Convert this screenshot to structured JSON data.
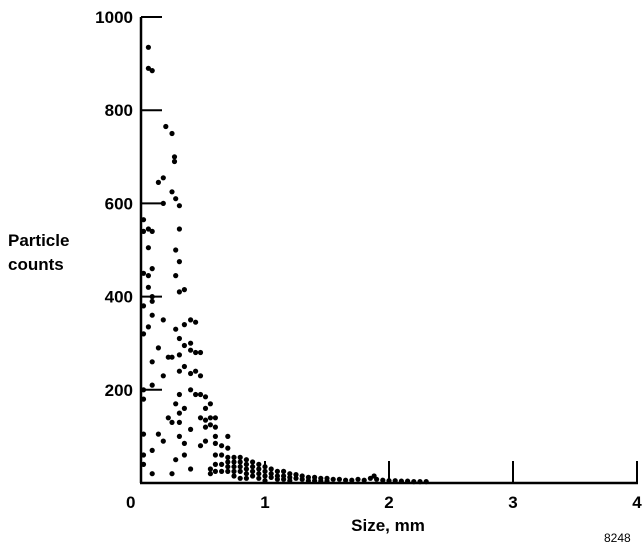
{
  "chart_data": {
    "type": "scatter",
    "title": "",
    "xlabel": "Size, mm",
    "ylabel_lines": [
      "Particle",
      "counts"
    ],
    "xlim": [
      0,
      4
    ],
    "ylim": [
      0,
      1000
    ],
    "x_ticks": [
      0,
      1,
      2,
      3,
      4
    ],
    "x_tick_labels": [
      "0",
      "1",
      "2",
      "3",
      "4"
    ],
    "y_ticks": [
      200,
      400,
      600,
      800,
      1000
    ],
    "y_tick_labels": [
      "200",
      "400",
      "600",
      "800",
      "1000"
    ],
    "grid": false,
    "legend": "none",
    "figure_id": "8248",
    "marker_color": "#000000",
    "points": [
      [
        0.02,
        565
      ],
      [
        0.02,
        540
      ],
      [
        0.02,
        450
      ],
      [
        0.02,
        380
      ],
      [
        0.02,
        320
      ],
      [
        0.02,
        200
      ],
      [
        0.02,
        180
      ],
      [
        0.02,
        105
      ],
      [
        0.02,
        60
      ],
      [
        0.02,
        40
      ],
      [
        0.06,
        935
      ],
      [
        0.06,
        890
      ],
      [
        0.06,
        545
      ],
      [
        0.06,
        505
      ],
      [
        0.06,
        445
      ],
      [
        0.06,
        420
      ],
      [
        0.06,
        335
      ],
      [
        0.09,
        885
      ],
      [
        0.09,
        540
      ],
      [
        0.09,
        460
      ],
      [
        0.09,
        400
      ],
      [
        0.09,
        390
      ],
      [
        0.09,
        360
      ],
      [
        0.09,
        260
      ],
      [
        0.09,
        210
      ],
      [
        0.09,
        70
      ],
      [
        0.09,
        20
      ],
      [
        0.14,
        645
      ],
      [
        0.14,
        290
      ],
      [
        0.14,
        105
      ],
      [
        0.18,
        655
      ],
      [
        0.18,
        600
      ],
      [
        0.18,
        350
      ],
      [
        0.18,
        230
      ],
      [
        0.18,
        90
      ],
      [
        0.2,
        765
      ],
      [
        0.22,
        270
      ],
      [
        0.22,
        140
      ],
      [
        0.25,
        750
      ],
      [
        0.25,
        625
      ],
      [
        0.25,
        270
      ],
      [
        0.25,
        130
      ],
      [
        0.25,
        20
      ],
      [
        0.27,
        700
      ],
      [
        0.27,
        690
      ],
      [
        0.28,
        610
      ],
      [
        0.28,
        500
      ],
      [
        0.28,
        445
      ],
      [
        0.28,
        330
      ],
      [
        0.28,
        170
      ],
      [
        0.28,
        50
      ],
      [
        0.31,
        595
      ],
      [
        0.31,
        545
      ],
      [
        0.31,
        475
      ],
      [
        0.31,
        410
      ],
      [
        0.31,
        310
      ],
      [
        0.31,
        275
      ],
      [
        0.31,
        240
      ],
      [
        0.31,
        190
      ],
      [
        0.31,
        150
      ],
      [
        0.31,
        130
      ],
      [
        0.31,
        100
      ],
      [
        0.35,
        415
      ],
      [
        0.35,
        340
      ],
      [
        0.35,
        295
      ],
      [
        0.35,
        250
      ],
      [
        0.35,
        160
      ],
      [
        0.35,
        85
      ],
      [
        0.35,
        60
      ],
      [
        0.4,
        350
      ],
      [
        0.4,
        300
      ],
      [
        0.4,
        285
      ],
      [
        0.4,
        235
      ],
      [
        0.4,
        200
      ],
      [
        0.4,
        115
      ],
      [
        0.4,
        30
      ],
      [
        0.44,
        345
      ],
      [
        0.44,
        280
      ],
      [
        0.44,
        240
      ],
      [
        0.44,
        190
      ],
      [
        0.48,
        280
      ],
      [
        0.48,
        230
      ],
      [
        0.48,
        190
      ],
      [
        0.48,
        140
      ],
      [
        0.48,
        80
      ],
      [
        0.52,
        185
      ],
      [
        0.52,
        160
      ],
      [
        0.52,
        135
      ],
      [
        0.52,
        120
      ],
      [
        0.52,
        90
      ],
      [
        0.56,
        170
      ],
      [
        0.56,
        140
      ],
      [
        0.56,
        125
      ],
      [
        0.56,
        30
      ],
      [
        0.56,
        20
      ],
      [
        0.6,
        140
      ],
      [
        0.6,
        120
      ],
      [
        0.6,
        100
      ],
      [
        0.6,
        85
      ],
      [
        0.6,
        60
      ],
      [
        0.6,
        40
      ],
      [
        0.6,
        25
      ],
      [
        0.65,
        80
      ],
      [
        0.65,
        60
      ],
      [
        0.65,
        40
      ],
      [
        0.65,
        25
      ],
      [
        0.7,
        100
      ],
      [
        0.7,
        75
      ],
      [
        0.7,
        55
      ],
      [
        0.7,
        45
      ],
      [
        0.7,
        35
      ],
      [
        0.7,
        25
      ],
      [
        0.75,
        55
      ],
      [
        0.75,
        45
      ],
      [
        0.75,
        35
      ],
      [
        0.75,
        25
      ],
      [
        0.75,
        15
      ],
      [
        0.8,
        55
      ],
      [
        0.8,
        45
      ],
      [
        0.8,
        35
      ],
      [
        0.8,
        25
      ],
      [
        0.8,
        10
      ],
      [
        0.85,
        50
      ],
      [
        0.85,
        40
      ],
      [
        0.85,
        30
      ],
      [
        0.85,
        20
      ],
      [
        0.85,
        10
      ],
      [
        0.9,
        45
      ],
      [
        0.9,
        35
      ],
      [
        0.9,
        25
      ],
      [
        0.9,
        15
      ],
      [
        0.95,
        40
      ],
      [
        0.95,
        30
      ],
      [
        0.95,
        20
      ],
      [
        0.95,
        10
      ],
      [
        1.0,
        35
      ],
      [
        1.0,
        25
      ],
      [
        1.0,
        15
      ],
      [
        1.0,
        5
      ],
      [
        1.05,
        30
      ],
      [
        1.05,
        20
      ],
      [
        1.05,
        12
      ],
      [
        1.1,
        25
      ],
      [
        1.1,
        15
      ],
      [
        1.1,
        8
      ],
      [
        1.15,
        25
      ],
      [
        1.15,
        15
      ],
      [
        1.15,
        8
      ],
      [
        1.2,
        20
      ],
      [
        1.2,
        12
      ],
      [
        1.2,
        5
      ],
      [
        1.25,
        18
      ],
      [
        1.25,
        10
      ],
      [
        1.3,
        15
      ],
      [
        1.3,
        8
      ],
      [
        1.35,
        12
      ],
      [
        1.35,
        5
      ],
      [
        1.4,
        12
      ],
      [
        1.4,
        5
      ],
      [
        1.45,
        10
      ],
      [
        1.45,
        4
      ],
      [
        1.5,
        10
      ],
      [
        1.5,
        4
      ],
      [
        1.55,
        8
      ],
      [
        1.6,
        8
      ],
      [
        1.65,
        6
      ],
      [
        1.7,
        6
      ],
      [
        1.75,
        8
      ],
      [
        1.8,
        6
      ],
      [
        1.85,
        10
      ],
      [
        1.88,
        15
      ],
      [
        1.9,
        8
      ],
      [
        1.95,
        6
      ],
      [
        2.0,
        5
      ],
      [
        2.05,
        5
      ],
      [
        2.1,
        4
      ],
      [
        2.15,
        4
      ],
      [
        2.2,
        3
      ],
      [
        2.25,
        3
      ],
      [
        2.3,
        3
      ]
    ]
  }
}
